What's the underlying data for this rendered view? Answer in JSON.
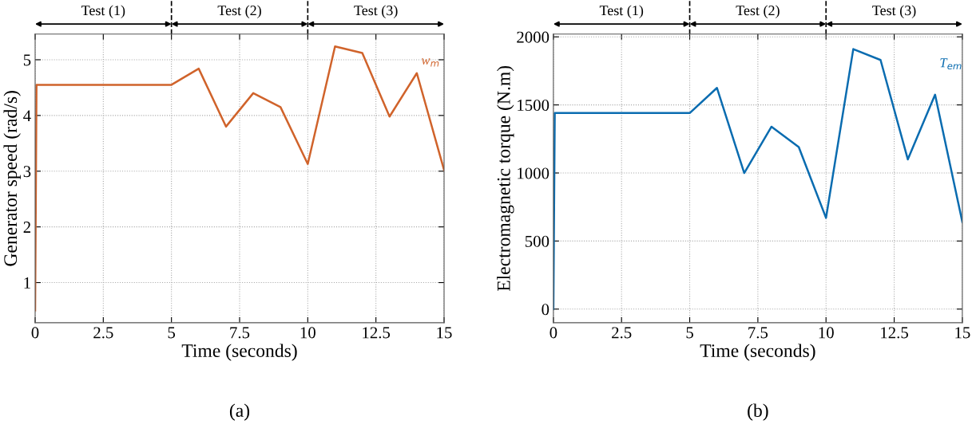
{
  "chart_data": [
    {
      "type": "line",
      "xlabel": "Time (seconds)",
      "ylabel": "Generator speed (rad/s)",
      "x": [
        0,
        0.05,
        5,
        6,
        7,
        8,
        9,
        10,
        11,
        12,
        13,
        14,
        15
      ],
      "series": [
        {
          "name": "w$_{m}$",
          "color": "#d0632b",
          "values": [
            0.5,
            4.55,
            4.55,
            4.84,
            3.8,
            4.4,
            4.15,
            3.13,
            5.24,
            5.12,
            3.98,
            4.76,
            3.02
          ]
        }
      ],
      "xlim": [
        0,
        15
      ],
      "xticks": [
        0,
        2.5,
        5,
        7.5,
        10,
        12.5,
        15
      ],
      "ylim": [
        0.28,
        5.46
      ],
      "yticks": [
        1,
        2,
        3,
        4,
        5
      ],
      "grid": true,
      "annotations": [
        "Test (1)",
        "Test (2)",
        "Test (3)",
        "(a)"
      ]
    },
    {
      "type": "line",
      "xlabel": "Time (seconds)",
      "ylabel": "Electromagnetic torque (N.m)",
      "x": [
        0,
        0.05,
        5,
        6,
        7,
        8,
        9,
        10,
        11,
        12,
        13,
        14,
        15
      ],
      "series": [
        {
          "name": "T$_{em}$",
          "color": "#0a6cb0",
          "values": [
            0,
            1440,
            1440,
            1625,
            1000,
            1340,
            1190,
            670,
            1910,
            1830,
            1100,
            1575,
            640
          ]
        }
      ],
      "xlim": [
        0,
        15
      ],
      "xticks": [
        0,
        2.5,
        5,
        7.5,
        10,
        12.5,
        15
      ],
      "ylim": [
        -100,
        2020
      ],
      "yticks": [
        0,
        500,
        1000,
        1500,
        2000
      ],
      "grid": true,
      "annotations": [
        "Test (1)",
        "Test (2)",
        "Test (3)",
        "(b)"
      ]
    }
  ]
}
